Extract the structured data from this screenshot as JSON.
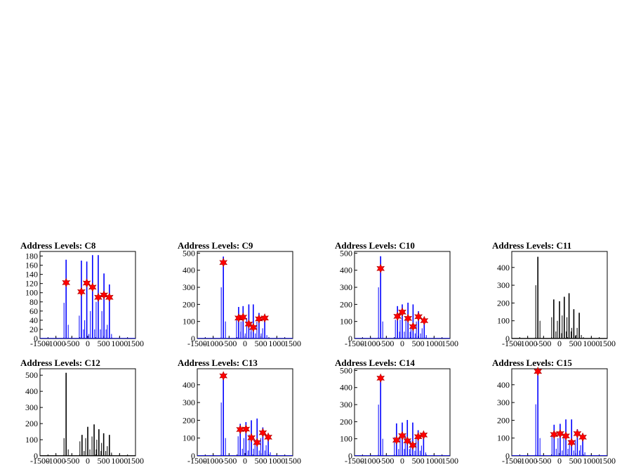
{
  "chart_data": [
    {
      "type": "bar",
      "title": "Address Levels: C8",
      "xlim": [
        -1500,
        1500
      ],
      "ylim": [
        0,
        190
      ],
      "yticks": [
        0,
        20,
        40,
        60,
        80,
        100,
        120,
        140,
        160,
        180
      ],
      "xticks": [
        -1500,
        -1000,
        -500,
        0,
        500,
        1000,
        1500
      ],
      "peak_color": "#0000ff",
      "peaks": [
        {
          "x": -680,
          "y": 172,
          "sub": [
            78,
            30
          ]
        },
        {
          "x": -200,
          "y": 170,
          "sub": [
            50,
            20
          ]
        },
        {
          "x": -30,
          "y": 168,
          "sub": [
            40,
            10
          ]
        },
        {
          "x": 150,
          "y": 182,
          "sub": [
            60,
            20
          ]
        },
        {
          "x": 330,
          "y": 182,
          "sub": [
            80,
            20
          ]
        },
        {
          "x": 510,
          "y": 142,
          "sub": [
            60,
            20
          ]
        },
        {
          "x": 680,
          "y": 118,
          "sub": [
            30,
            10
          ]
        }
      ],
      "markers": [
        {
          "x": -680,
          "y": 122
        },
        {
          "x": -200,
          "y": 102
        },
        {
          "x": -30,
          "y": 121
        },
        {
          "x": 150,
          "y": 112
        },
        {
          "x": 330,
          "y": 90
        },
        {
          "x": 510,
          "y": 95
        },
        {
          "x": 680,
          "y": 90
        }
      ]
    },
    {
      "type": "bar",
      "title": "Address Levels: C9",
      "xlim": [
        -1500,
        1500
      ],
      "ylim": [
        0,
        510
      ],
      "yticks": [
        0,
        100,
        200,
        300,
        400,
        500
      ],
      "xticks": [
        -1500,
        -1000,
        -500,
        0,
        500,
        1000,
        1500
      ],
      "peak_color": "#0000ff",
      "peaks": [
        {
          "x": -680,
          "y": 480,
          "sub": [
            300,
            100
          ]
        },
        {
          "x": -200,
          "y": 185,
          "sub": [
            120,
            40
          ]
        },
        {
          "x": -60,
          "y": 190,
          "sub": [
            100,
            30
          ]
        },
        {
          "x": 120,
          "y": 200,
          "sub": [
            120,
            40
          ]
        },
        {
          "x": 260,
          "y": 200,
          "sub": [
            90,
            30
          ]
        },
        {
          "x": 440,
          "y": 150,
          "sub": [
            100,
            30
          ]
        },
        {
          "x": 620,
          "y": 125,
          "sub": [
            60,
            20
          ]
        }
      ],
      "markers": [
        {
          "x": -680,
          "y": 445
        },
        {
          "x": -200,
          "y": 120
        },
        {
          "x": -60,
          "y": 125
        },
        {
          "x": 120,
          "y": 85
        },
        {
          "x": 260,
          "y": 65
        },
        {
          "x": 440,
          "y": 115
        },
        {
          "x": 620,
          "y": 120
        }
      ]
    },
    {
      "type": "bar",
      "title": "Address Levels: C10",
      "xlim": [
        -1500,
        1500
      ],
      "ylim": [
        0,
        510
      ],
      "yticks": [
        0,
        100,
        200,
        300,
        400,
        500
      ],
      "xticks": [
        -1500,
        -1000,
        -500,
        0,
        500,
        1000,
        1500
      ],
      "peak_color": "#0000ff",
      "peaks": [
        {
          "x": -680,
          "y": 482,
          "sub": [
            300,
            100
          ]
        },
        {
          "x": -150,
          "y": 190,
          "sub": [
            110,
            40
          ]
        },
        {
          "x": 0,
          "y": 200,
          "sub": [
            110,
            40
          ]
        },
        {
          "x": 180,
          "y": 210,
          "sub": [
            110,
            40
          ]
        },
        {
          "x": 340,
          "y": 200,
          "sub": [
            80,
            30
          ]
        },
        {
          "x": 510,
          "y": 160,
          "sub": [
            100,
            30
          ]
        },
        {
          "x": 690,
          "y": 120,
          "sub": [
            60,
            20
          ]
        }
      ],
      "markers": [
        {
          "x": -680,
          "y": 410
        },
        {
          "x": -150,
          "y": 130
        },
        {
          "x": 0,
          "y": 155
        },
        {
          "x": 180,
          "y": 118
        },
        {
          "x": 340,
          "y": 70
        },
        {
          "x": 510,
          "y": 128
        },
        {
          "x": 690,
          "y": 105
        }
      ]
    },
    {
      "type": "bar",
      "title": "Address Levels: C11",
      "xlim": [
        -1500,
        1500
      ],
      "ylim": [
        0,
        490
      ],
      "yticks": [
        0,
        100,
        200,
        300,
        400
      ],
      "xticks": [
        -1500,
        -1000,
        -500,
        0,
        500,
        1000,
        1500
      ],
      "peak_color": "#000000",
      "peaks": [
        {
          "x": -680,
          "y": 460,
          "sub": [
            300,
            100
          ]
        },
        {
          "x": -180,
          "y": 220,
          "sub": [
            120,
            40
          ]
        },
        {
          "x": 0,
          "y": 210,
          "sub": [
            100,
            30
          ]
        },
        {
          "x": 150,
          "y": 235,
          "sub": [
            130,
            40
          ]
        },
        {
          "x": 300,
          "y": 255,
          "sub": [
            120,
            40
          ]
        },
        {
          "x": 450,
          "y": 165,
          "sub": [
            60,
            20
          ]
        },
        {
          "x": 620,
          "y": 145,
          "sub": [
            60,
            20
          ]
        }
      ],
      "markers": []
    },
    {
      "type": "bar",
      "title": "Address Levels: C12",
      "xlim": [
        -1500,
        1500
      ],
      "ylim": [
        0,
        540
      ],
      "yticks": [
        0,
        100,
        200,
        300,
        400,
        500
      ],
      "xticks": [
        -1500,
        -1000,
        -500,
        0,
        500,
        1000,
        1500
      ],
      "peak_color": "#000000",
      "peaks": [
        {
          "x": -680,
          "y": 515,
          "sub": [
            110,
            40
          ]
        },
        {
          "x": -180,
          "y": 130,
          "sub": [
            90,
            30
          ]
        },
        {
          "x": 0,
          "y": 180,
          "sub": [
            110,
            40
          ]
        },
        {
          "x": 200,
          "y": 195,
          "sub": [
            120,
            40
          ]
        },
        {
          "x": 350,
          "y": 165,
          "sub": [
            100,
            30
          ]
        },
        {
          "x": 500,
          "y": 140,
          "sub": [
            80,
            30
          ]
        },
        {
          "x": 680,
          "y": 130,
          "sub": [
            60,
            20
          ]
        }
      ],
      "markers": []
    },
    {
      "type": "bar",
      "title": "Address Levels: C13",
      "xlim": [
        -1500,
        1500
      ],
      "ylim": [
        0,
        490
      ],
      "yticks": [
        0,
        100,
        200,
        300,
        400
      ],
      "xticks": [
        -1500,
        -1000,
        -500,
        0,
        500,
        1000,
        1500
      ],
      "peak_color": "#0000ff",
      "peaks": [
        {
          "x": -680,
          "y": 465,
          "sub": [
            300,
            100
          ]
        },
        {
          "x": -150,
          "y": 180,
          "sub": [
            110,
            40
          ]
        },
        {
          "x": 30,
          "y": 190,
          "sub": [
            100,
            30
          ]
        },
        {
          "x": 200,
          "y": 200,
          "sub": [
            120,
            40
          ]
        },
        {
          "x": 380,
          "y": 210,
          "sub": [
            90,
            30
          ]
        },
        {
          "x": 560,
          "y": 160,
          "sub": [
            100,
            30
          ]
        },
        {
          "x": 730,
          "y": 120,
          "sub": [
            60,
            20
          ]
        }
      ],
      "markers": [
        {
          "x": -680,
          "y": 450
        },
        {
          "x": -150,
          "y": 148
        },
        {
          "x": 30,
          "y": 150
        },
        {
          "x": 200,
          "y": 102
        },
        {
          "x": 380,
          "y": 75
        },
        {
          "x": 560,
          "y": 130
        },
        {
          "x": 730,
          "y": 105
        }
      ]
    },
    {
      "type": "bar",
      "title": "Address Levels: C14",
      "xlim": [
        -1500,
        1500
      ],
      "ylim": [
        0,
        510
      ],
      "yticks": [
        0,
        100,
        200,
        300,
        400,
        500
      ],
      "xticks": [
        -1500,
        -1000,
        -500,
        0,
        500,
        1000,
        1500
      ],
      "peak_color": "#0000ff",
      "peaks": [
        {
          "x": -680,
          "y": 470,
          "sub": [
            300,
            100
          ]
        },
        {
          "x": -180,
          "y": 190,
          "sub": [
            110,
            40
          ]
        },
        {
          "x": 0,
          "y": 195,
          "sub": [
            110,
            40
          ]
        },
        {
          "x": 160,
          "y": 210,
          "sub": [
            120,
            40
          ]
        },
        {
          "x": 330,
          "y": 195,
          "sub": [
            90,
            30
          ]
        },
        {
          "x": 500,
          "y": 150,
          "sub": [
            100,
            30
          ]
        },
        {
          "x": 670,
          "y": 130,
          "sub": [
            60,
            20
          ]
        }
      ],
      "markers": [
        {
          "x": -680,
          "y": 455
        },
        {
          "x": -180,
          "y": 92
        },
        {
          "x": 0,
          "y": 118
        },
        {
          "x": 160,
          "y": 88
        },
        {
          "x": 330,
          "y": 62
        },
        {
          "x": 500,
          "y": 112
        },
        {
          "x": 670,
          "y": 122
        }
      ]
    },
    {
      "type": "bar",
      "title": "Address Levels: C15",
      "xlim": [
        -1500,
        1500
      ],
      "ylim": [
        0,
        490
      ],
      "yticks": [
        0,
        100,
        200,
        300,
        400
      ],
      "xticks": [
        -1500,
        -1000,
        -500,
        0,
        500,
        1000,
        1500
      ],
      "peak_color": "#0000ff",
      "peaks": [
        {
          "x": -680,
          "y": 478,
          "sub": [
            290,
            100
          ]
        },
        {
          "x": -170,
          "y": 175,
          "sub": [
            110,
            40
          ]
        },
        {
          "x": 20,
          "y": 180,
          "sub": [
            100,
            30
          ]
        },
        {
          "x": 200,
          "y": 205,
          "sub": [
            120,
            40
          ]
        },
        {
          "x": 380,
          "y": 205,
          "sub": [
            90,
            30
          ]
        },
        {
          "x": 560,
          "y": 150,
          "sub": [
            90,
            30
          ]
        },
        {
          "x": 730,
          "y": 120,
          "sub": [
            60,
            20
          ]
        }
      ],
      "markers": [
        {
          "x": -680,
          "y": 475
        },
        {
          "x": -170,
          "y": 120
        },
        {
          "x": 20,
          "y": 125
        },
        {
          "x": 200,
          "y": 112
        },
        {
          "x": 380,
          "y": 75
        },
        {
          "x": 560,
          "y": 125
        },
        {
          "x": 730,
          "y": 105
        }
      ]
    }
  ],
  "marker_color": "#ff0000"
}
